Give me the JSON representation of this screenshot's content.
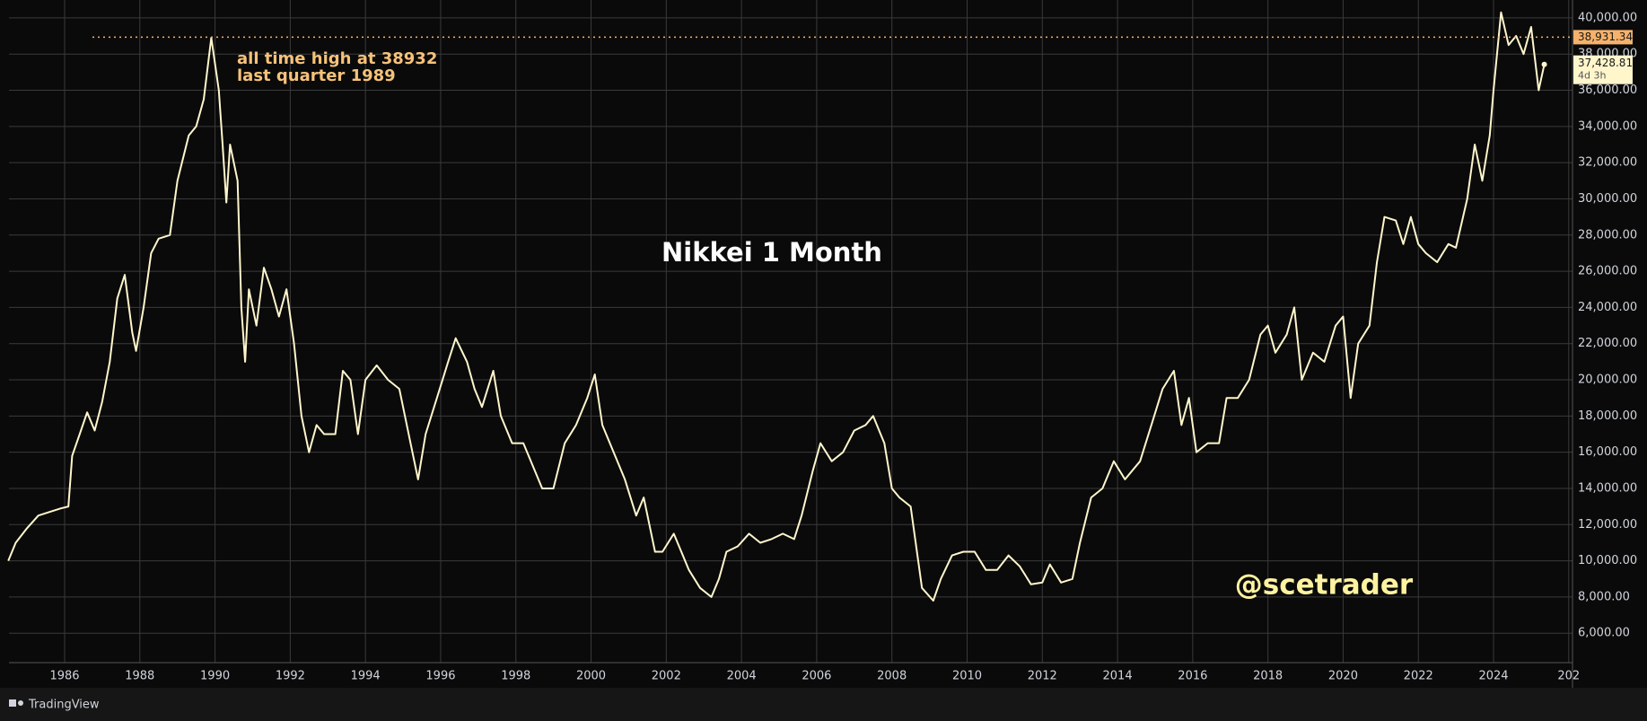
{
  "chart_data": {
    "type": "line",
    "title": "Nikkei 1 Month",
    "annotations": [
      "all time high at 38932",
      "last quarter 1989"
    ],
    "watermark": "@scetrader",
    "color": "#fff6cc",
    "grid": true,
    "x": [
      1984.5,
      1984.7,
      1985.0,
      1985.3,
      1985.6,
      1985.9,
      1986.1,
      1986.2,
      1986.4,
      1986.6,
      1986.8,
      1987.0,
      1987.2,
      1987.4,
      1987.6,
      1987.8,
      1987.9,
      1988.1,
      1988.3,
      1988.5,
      1988.8,
      1989.0,
      1989.3,
      1989.5,
      1989.7,
      1989.9,
      1990.1,
      1990.2,
      1990.3,
      1990.4,
      1990.6,
      1990.7,
      1990.8,
      1990.9,
      1991.1,
      1991.3,
      1991.5,
      1991.7,
      1991.9,
      1992.1,
      1992.3,
      1992.5,
      1992.7,
      1992.9,
      1993.2,
      1993.4,
      1993.6,
      1993.8,
      1994.0,
      1994.3,
      1994.6,
      1994.9,
      1995.2,
      1995.4,
      1995.6,
      1995.9,
      1996.2,
      1996.4,
      1996.7,
      1996.9,
      1997.1,
      1997.4,
      1997.6,
      1997.9,
      1998.2,
      1998.4,
      1998.7,
      1999.0,
      1999.3,
      1999.6,
      1999.9,
      2000.1,
      2000.3,
      2000.6,
      2000.9,
      2001.2,
      2001.4,
      2001.7,
      2001.9,
      2002.2,
      2002.4,
      2002.6,
      2002.9,
      2003.2,
      2003.4,
      2003.6,
      2003.9,
      2004.2,
      2004.5,
      2004.8,
      2005.1,
      2005.4,
      2005.6,
      2005.9,
      2006.1,
      2006.4,
      2006.7,
      2007.0,
      2007.3,
      2007.5,
      2007.8,
      2008.0,
      2008.2,
      2008.5,
      2008.8,
      2009.1,
      2009.3,
      2009.6,
      2009.9,
      2010.2,
      2010.5,
      2010.8,
      2011.1,
      2011.4,
      2011.7,
      2012.0,
      2012.2,
      2012.5,
      2012.8,
      2013.0,
      2013.3,
      2013.6,
      2013.9,
      2014.2,
      2014.6,
      2014.9,
      2015.2,
      2015.5,
      2015.7,
      2015.9,
      2016.1,
      2016.4,
      2016.7,
      2016.9,
      2017.2,
      2017.5,
      2017.8,
      2018.0,
      2018.2,
      2018.5,
      2018.7,
      2018.9,
      2019.2,
      2019.5,
      2019.8,
      2020.0,
      2020.2,
      2020.4,
      2020.7,
      2020.9,
      2021.1,
      2021.4,
      2021.6,
      2021.8,
      2022.0,
      2022.2,
      2022.5,
      2022.8,
      2023.0,
      2023.3,
      2023.5,
      2023.7,
      2023.9,
      2024.0,
      2024.2,
      2024.4,
      2024.6,
      2024.8,
      2025.0,
      2025.2,
      2025.35
    ],
    "values": [
      10000,
      11000,
      11800,
      12500,
      12700,
      12900,
      13000,
      15800,
      17000,
      18200,
      17200,
      18800,
      21000,
      24500,
      25800,
      22600,
      21600,
      24000,
      27000,
      27800,
      28000,
      31000,
      33500,
      34000,
      35500,
      38900,
      36000,
      33000,
      29800,
      33000,
      31000,
      24000,
      21000,
      25000,
      23000,
      26200,
      25000,
      23500,
      25000,
      22000,
      18000,
      16000,
      17500,
      17000,
      17000,
      20500,
      20000,
      17000,
      20000,
      20800,
      20000,
      19500,
      16500,
      14500,
      17000,
      19000,
      21000,
      22300,
      21000,
      19500,
      18500,
      20500,
      18000,
      16500,
      16500,
      15500,
      14000,
      14000,
      16500,
      17500,
      19000,
      20300,
      17500,
      16000,
      14500,
      12500,
      13500,
      10500,
      10500,
      11500,
      10500,
      9500,
      8500,
      8000,
      9000,
      10500,
      10800,
      11500,
      11000,
      11200,
      11500,
      11200,
      12500,
      15000,
      16500,
      15500,
      16000,
      17200,
      17500,
      18000,
      16500,
      14000,
      13500,
      13000,
      8500,
      7800,
      9000,
      10300,
      10500,
      10500,
      9500,
      9500,
      10300,
      9700,
      8700,
      8800,
      9800,
      8800,
      9000,
      11000,
      13500,
      14000,
      15500,
      14500,
      15500,
      17500,
      19500,
      20500,
      17500,
      19000,
      16000,
      16500,
      16500,
      19000,
      19000,
      20000,
      22500,
      23000,
      21500,
      22500,
      24000,
      20000,
      21500,
      21000,
      23000,
      23500,
      19000,
      22000,
      23000,
      26500,
      29000,
      28800,
      27500,
      29000,
      27500,
      27000,
      26500,
      27500,
      27300,
      30000,
      33000,
      31000,
      33500,
      36000,
      40300,
      38500,
      39000,
      38000,
      39500,
      36000,
      37428.81
    ],
    "value_labels": {
      "last": "37,428.81",
      "countdown": "4d 3h"
    },
    "hline": {
      "value": 38931.34,
      "label": "38,931.34",
      "color": "#f6b26b"
    },
    "xlim": [
      1984.52,
      2026.1
    ],
    "xticks": [
      1986,
      1988,
      1990,
      1992,
      1994,
      1996,
      1998,
      2000,
      2002,
      2004,
      2006,
      2008,
      2010,
      2012,
      2014,
      2016,
      2018,
      2020,
      2022,
      2024,
      {
        "value": 2026,
        "label": "202"
      }
    ],
    "ylim": [
      4375,
      40986
    ],
    "yticks": [
      {
        "value": 6000,
        "label": "6,000.00"
      },
      {
        "value": 8000,
        "label": "8,000.00"
      },
      {
        "value": 10000,
        "label": "10,000.00"
      },
      {
        "value": 12000,
        "label": "12,000.00"
      },
      {
        "value": 14000,
        "label": "14,000.00"
      },
      {
        "value": 16000,
        "label": "16,000.00"
      },
      {
        "value": 18000,
        "label": "18,000.00"
      },
      {
        "value": 20000,
        "label": "20,000.00"
      },
      {
        "value": 22000,
        "label": "22,000.00"
      },
      {
        "value": 24000,
        "label": "24,000.00"
      },
      {
        "value": 26000,
        "label": "26,000.00"
      },
      {
        "value": 28000,
        "label": "28,000.00"
      },
      {
        "value": 30000,
        "label": "30,000.00"
      },
      {
        "value": 32000,
        "label": "32,000.00"
      },
      {
        "value": 34000,
        "label": "34,000.00"
      },
      {
        "value": 36000,
        "label": "36,000.00"
      },
      {
        "value": 38000,
        "label": "38,000.00"
      },
      {
        "value": 40000,
        "label": "40,000.00"
      }
    ]
  },
  "footer": {
    "brand": "TradingView"
  }
}
